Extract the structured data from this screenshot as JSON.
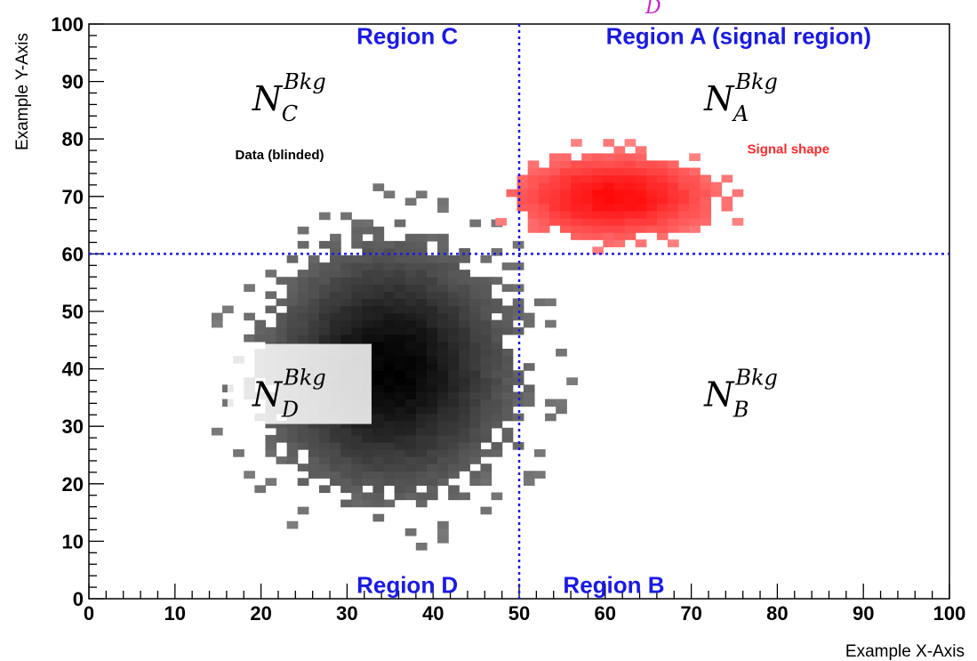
{
  "chart_data": {
    "type": "heatmap",
    "title": "",
    "xlabel": "Example X-Axis",
    "ylabel": "Example Y-Axis",
    "xlim": [
      0,
      100
    ],
    "ylim": [
      0,
      100
    ],
    "x_ticks": [
      "0",
      "10",
      "20",
      "30",
      "40",
      "50",
      "60",
      "70",
      "80",
      "90",
      "100"
    ],
    "y_ticks": [
      "0",
      "10",
      "20",
      "30",
      "40",
      "50",
      "60",
      "70",
      "80",
      "90",
      "100"
    ],
    "cuts": {
      "x": 50,
      "y": 60
    },
    "series": [
      {
        "name": "Data (blinded)",
        "color": "#1a1a1a",
        "center": [
          35,
          40
        ],
        "sigma": [
          10,
          15
        ],
        "support": {
          "x": [
            13,
            66
          ],
          "y": [
            1,
            80
          ]
        }
      },
      {
        "name": "Signal shape",
        "color": "#ff2020",
        "center": [
          61,
          70
        ],
        "sigma": [
          8,
          5
        ],
        "support": {
          "x": [
            46,
            87
          ],
          "y": [
            55,
            91
          ]
        }
      }
    ],
    "regions": [
      {
        "label": "Region C",
        "x": 37,
        "y": 96.5
      },
      {
        "label": "Region A (signal region)",
        "x": 75.5,
        "y": 96.5
      },
      {
        "label": "Region D",
        "x": 37,
        "y": 1
      },
      {
        "label": "Region B",
        "x": 61,
        "y": 1
      }
    ],
    "background_labels": [
      {
        "main": "N",
        "sup": "Bkg",
        "sub": "C",
        "x": 19,
        "y": 85
      },
      {
        "main": "N",
        "sup": "Bkg",
        "sub": "A",
        "x": 71.5,
        "y": 85
      },
      {
        "main": "N",
        "sup": "Bkg",
        "sub": "D",
        "x": 19,
        "y": 33.5
      },
      {
        "main": "N",
        "sup": "Bkg",
        "sub": "B",
        "x": 71.5,
        "y": 33.5
      }
    ],
    "annotations": [
      {
        "text": "Data (blinded)",
        "x": 17,
        "y": 76.5,
        "style": "black"
      },
      {
        "text": "Signal shape",
        "x": 76.5,
        "y": 77.5,
        "style": "red"
      }
    ],
    "stray_text": "D"
  }
}
